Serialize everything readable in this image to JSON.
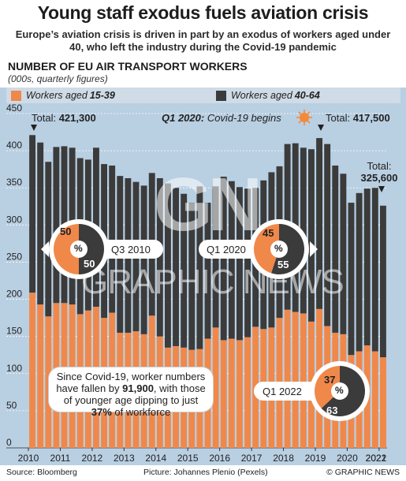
{
  "header": {
    "title": "Young staff exodus fuels aviation crisis",
    "subtitle": "Europe’s aviation crisis is driven in part by an exodus of workers aged under 40, who left the industry during the Covid-19 pandemic",
    "chart_title": "NUMBER OF EU AIR TRANSPORT WORKERS",
    "chart_unit": "(000s, quarterly figures)"
  },
  "legend": {
    "young_prefix": "Workers aged ",
    "young_range": "15-39",
    "old_prefix": "Workers aged ",
    "old_range": "40-64"
  },
  "colors": {
    "young": "#f0884a",
    "old": "#3b3b3b",
    "background": "#b9cfe2",
    "legend_bg": "#cfdbe6",
    "covid_icon": "#f28a3b"
  },
  "annotations": {
    "total_first_label": "Total: ",
    "total_first_value": "421,300",
    "covid_quarter": "Q1 2020:",
    "covid_text": " Covid-19 begins",
    "total_covid_label": "Total: ",
    "total_covid_value": "417,500",
    "total_last_label": "Total:",
    "total_last_value": "325,600",
    "pie1": {
      "label": "Q3 2010",
      "young": "50",
      "old": "50",
      "center": "%"
    },
    "pie2": {
      "label": "Q1 2020",
      "young": "45",
      "old": "55",
      "center": "%"
    },
    "pie3": {
      "label": "Q1 2022",
      "young": "37",
      "old": "63",
      "center": "%"
    },
    "callout_part1": "Since Covid-19, worker numbers have fallen by ",
    "callout_bold1": "91,900",
    "callout_part2": ", with those of younger age dipping to just ",
    "callout_bold2": "37%",
    "callout_part3": " of workforce"
  },
  "watermark": {
    "logo": "GN",
    "text": "GRAPHIC NEWS"
  },
  "footer": {
    "source": "Source: Bloomberg",
    "picture": "Picture: Johannes Plenio (Pexels)",
    "credit": "© GRAPHIC NEWS"
  },
  "chart_data": {
    "type": "bar",
    "stacked": true,
    "y_ticks": [
      0,
      50,
      100,
      150,
      200,
      250,
      300,
      350,
      400,
      450
    ],
    "ylim": [
      0,
      450
    ],
    "x_tick_labels": [
      "2010",
      "2011",
      "2012",
      "2013",
      "2014",
      "2015",
      "2016",
      "2017",
      "2018",
      "2019",
      "2020",
      "2021",
      "2022"
    ],
    "series": [
      {
        "name": "Workers aged 15-39",
        "values": [
          209,
          193,
          177,
          195,
          195,
          193,
          180,
          185,
          190,
          175,
          182,
          155,
          155,
          157,
          153,
          178,
          150,
          135,
          137,
          135,
          132,
          133,
          147,
          162,
          145,
          147,
          145,
          149,
          163,
          160,
          162,
          175,
          186,
          183,
          181,
          170,
          187,
          164,
          155,
          153,
          125,
          130,
          138,
          130,
          122
        ]
      },
      {
        "name": "Workers aged 40-64",
        "values": [
          212,
          218,
          208,
          210,
          211,
          211,
          210,
          203,
          214,
          207,
          198,
          211,
          208,
          201,
          200,
          192,
          213,
          221,
          213,
          207,
          198,
          219,
          183,
          190,
          220,
          212,
          206,
          200,
          187,
          200,
          209,
          204,
          223,
          227,
          223,
          232,
          230,
          245,
          225,
          216,
          205,
          213,
          211,
          220,
          204
        ]
      }
    ]
  }
}
